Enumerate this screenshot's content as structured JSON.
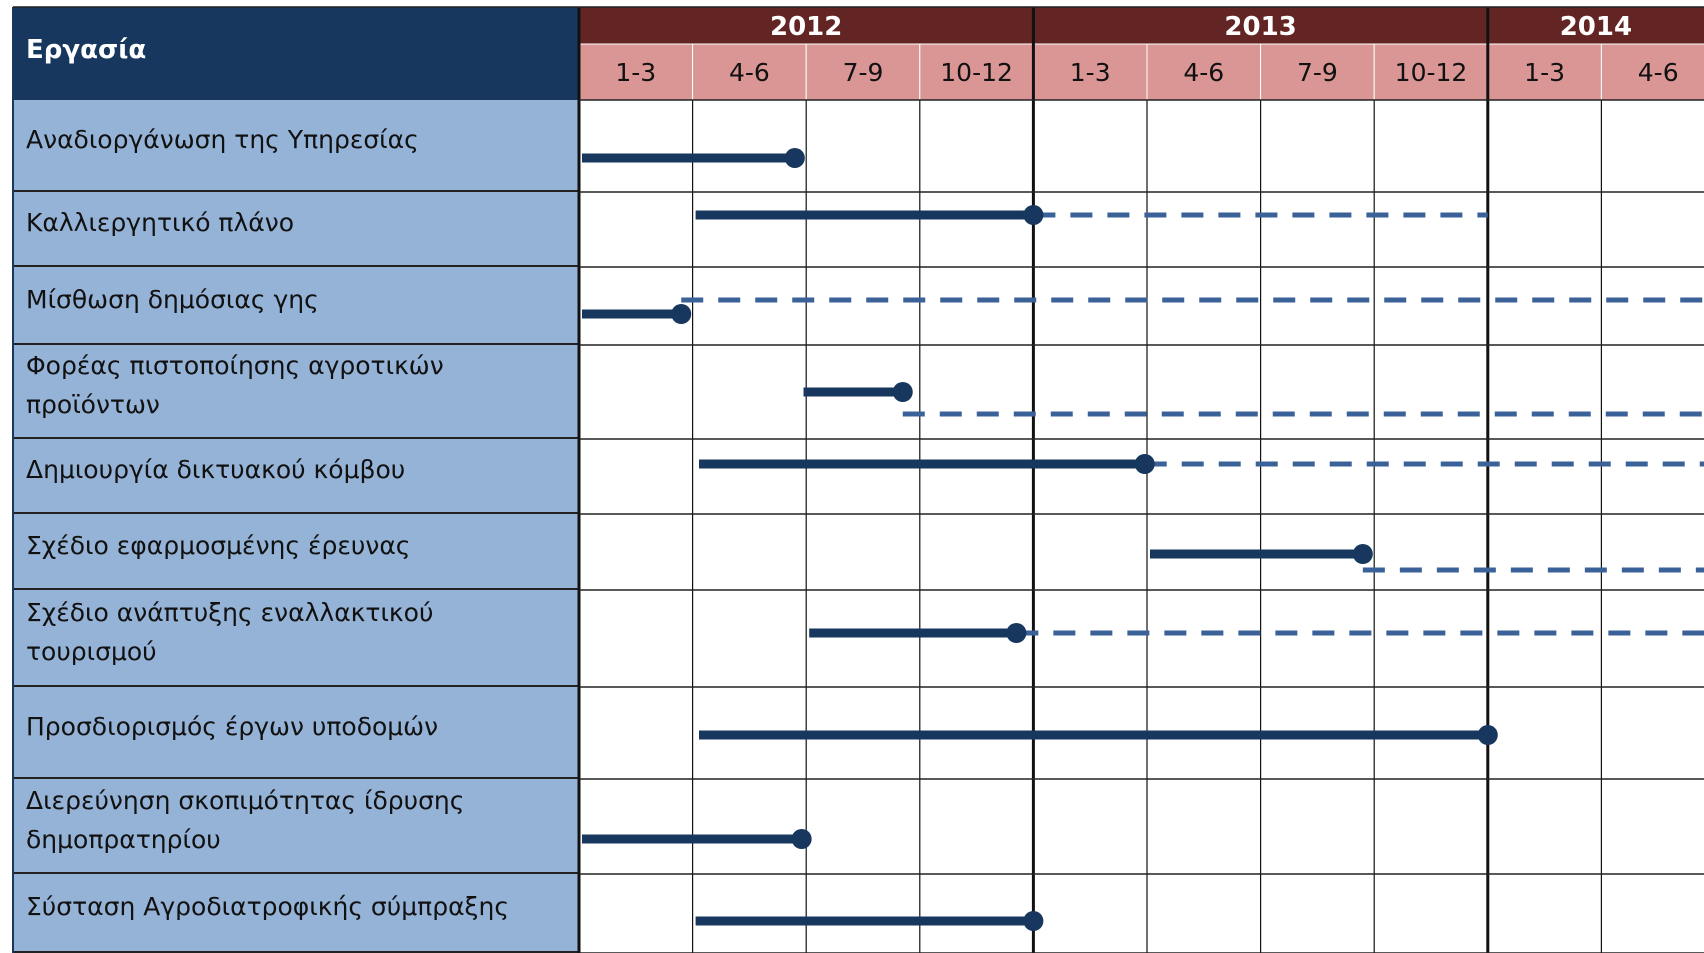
{
  "chart_data": {
    "type": "gantt",
    "header": "Εργασία",
    "years": [
      {
        "label": "2012",
        "quarters": [
          "1-3",
          "4-6",
          "7-9",
          "10-12"
        ]
      },
      {
        "label": "2013",
        "quarters": [
          "1-3",
          "4-6",
          "7-9",
          "10-12"
        ]
      },
      {
        "label": "2014",
        "quarters": [
          "1-3",
          "4-6"
        ]
      }
    ],
    "xlim": [
      0,
      10
    ],
    "bar_color": "#17375e",
    "extension_color": "#3a6298",
    "tasks": [
      {
        "label": "Αναδιοργάνωση της Υπηρεσίας",
        "start": 0,
        "end": 1.9
      },
      {
        "label": "Καλλιεργητικό πλάνο",
        "start": 1,
        "end": 4,
        "extended_end": 8
      },
      {
        "label": "Μίσθωση  δημόσιας γης",
        "start": 0,
        "end": 0.9,
        "extended_end": 10
      },
      {
        "label": "Φορέας πιστοποίησης αγροτικών προϊόντων",
        "start": 1.95,
        "end": 2.85,
        "extended_end": 10
      },
      {
        "label": "Δημιουργία δικτυακού κόμβου",
        "start": 1.03,
        "end": 4.98,
        "extended_end": 10
      },
      {
        "label": "Σχέδιο εφαρμοσμένης έρευνας",
        "start": 5,
        "end": 6.9,
        "extended_end": 10
      },
      {
        "label": "Σχέδιο ανάπτυξης εναλλακτικού τουρισμού",
        "start": 2,
        "end": 3.85,
        "extended_end": 10
      },
      {
        "label": "Προσδιορισμός έργων υποδομών",
        "start": 1.03,
        "end": 8
      },
      {
        "label": "Διερεύνηση  σκοπιμότητας  ίδρυσης δημοπρατηρίου",
        "start": 0,
        "end": 1.96
      },
      {
        "label": "Σύσταση Αγροδιατροφικής σύμπραξης",
        "start": 1,
        "end": 4
      }
    ]
  }
}
